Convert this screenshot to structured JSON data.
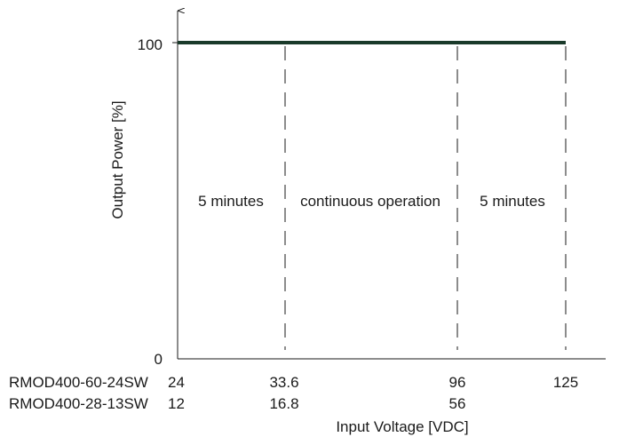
{
  "chart_data": {
    "type": "line",
    "title": "",
    "xlabel": "Input Voltage [VDC]",
    "ylabel": "Output Power [%]",
    "ylim": [
      0,
      100
    ],
    "yticks": [
      "0",
      "100"
    ],
    "grid": false,
    "series": [
      {
        "x": [
          24,
          125
        ],
        "y": [
          100,
          100
        ],
        "color": "#1a3a2a"
      }
    ],
    "boundaries": [
      33.6,
      96,
      125
    ],
    "regions": [
      {
        "label": "5 minutes",
        "x": [
          24,
          33.6
        ]
      },
      {
        "label": "continuous operation",
        "x": [
          33.6,
          96
        ]
      },
      {
        "label": "5 minutes",
        "x": [
          96,
          125
        ]
      }
    ],
    "x_scales": [
      {
        "model": "RMOD400-60-24SW",
        "ticks": [
          "24",
          "33.6",
          "96",
          "125"
        ]
      },
      {
        "model": "RMOD400-28-13SW",
        "ticks": [
          "12",
          "16.8",
          "56",
          ""
        ]
      }
    ],
    "colors": {
      "axis": "#1a1a1a",
      "series": "#1a3a2a",
      "text": "#1a1a1a"
    }
  }
}
